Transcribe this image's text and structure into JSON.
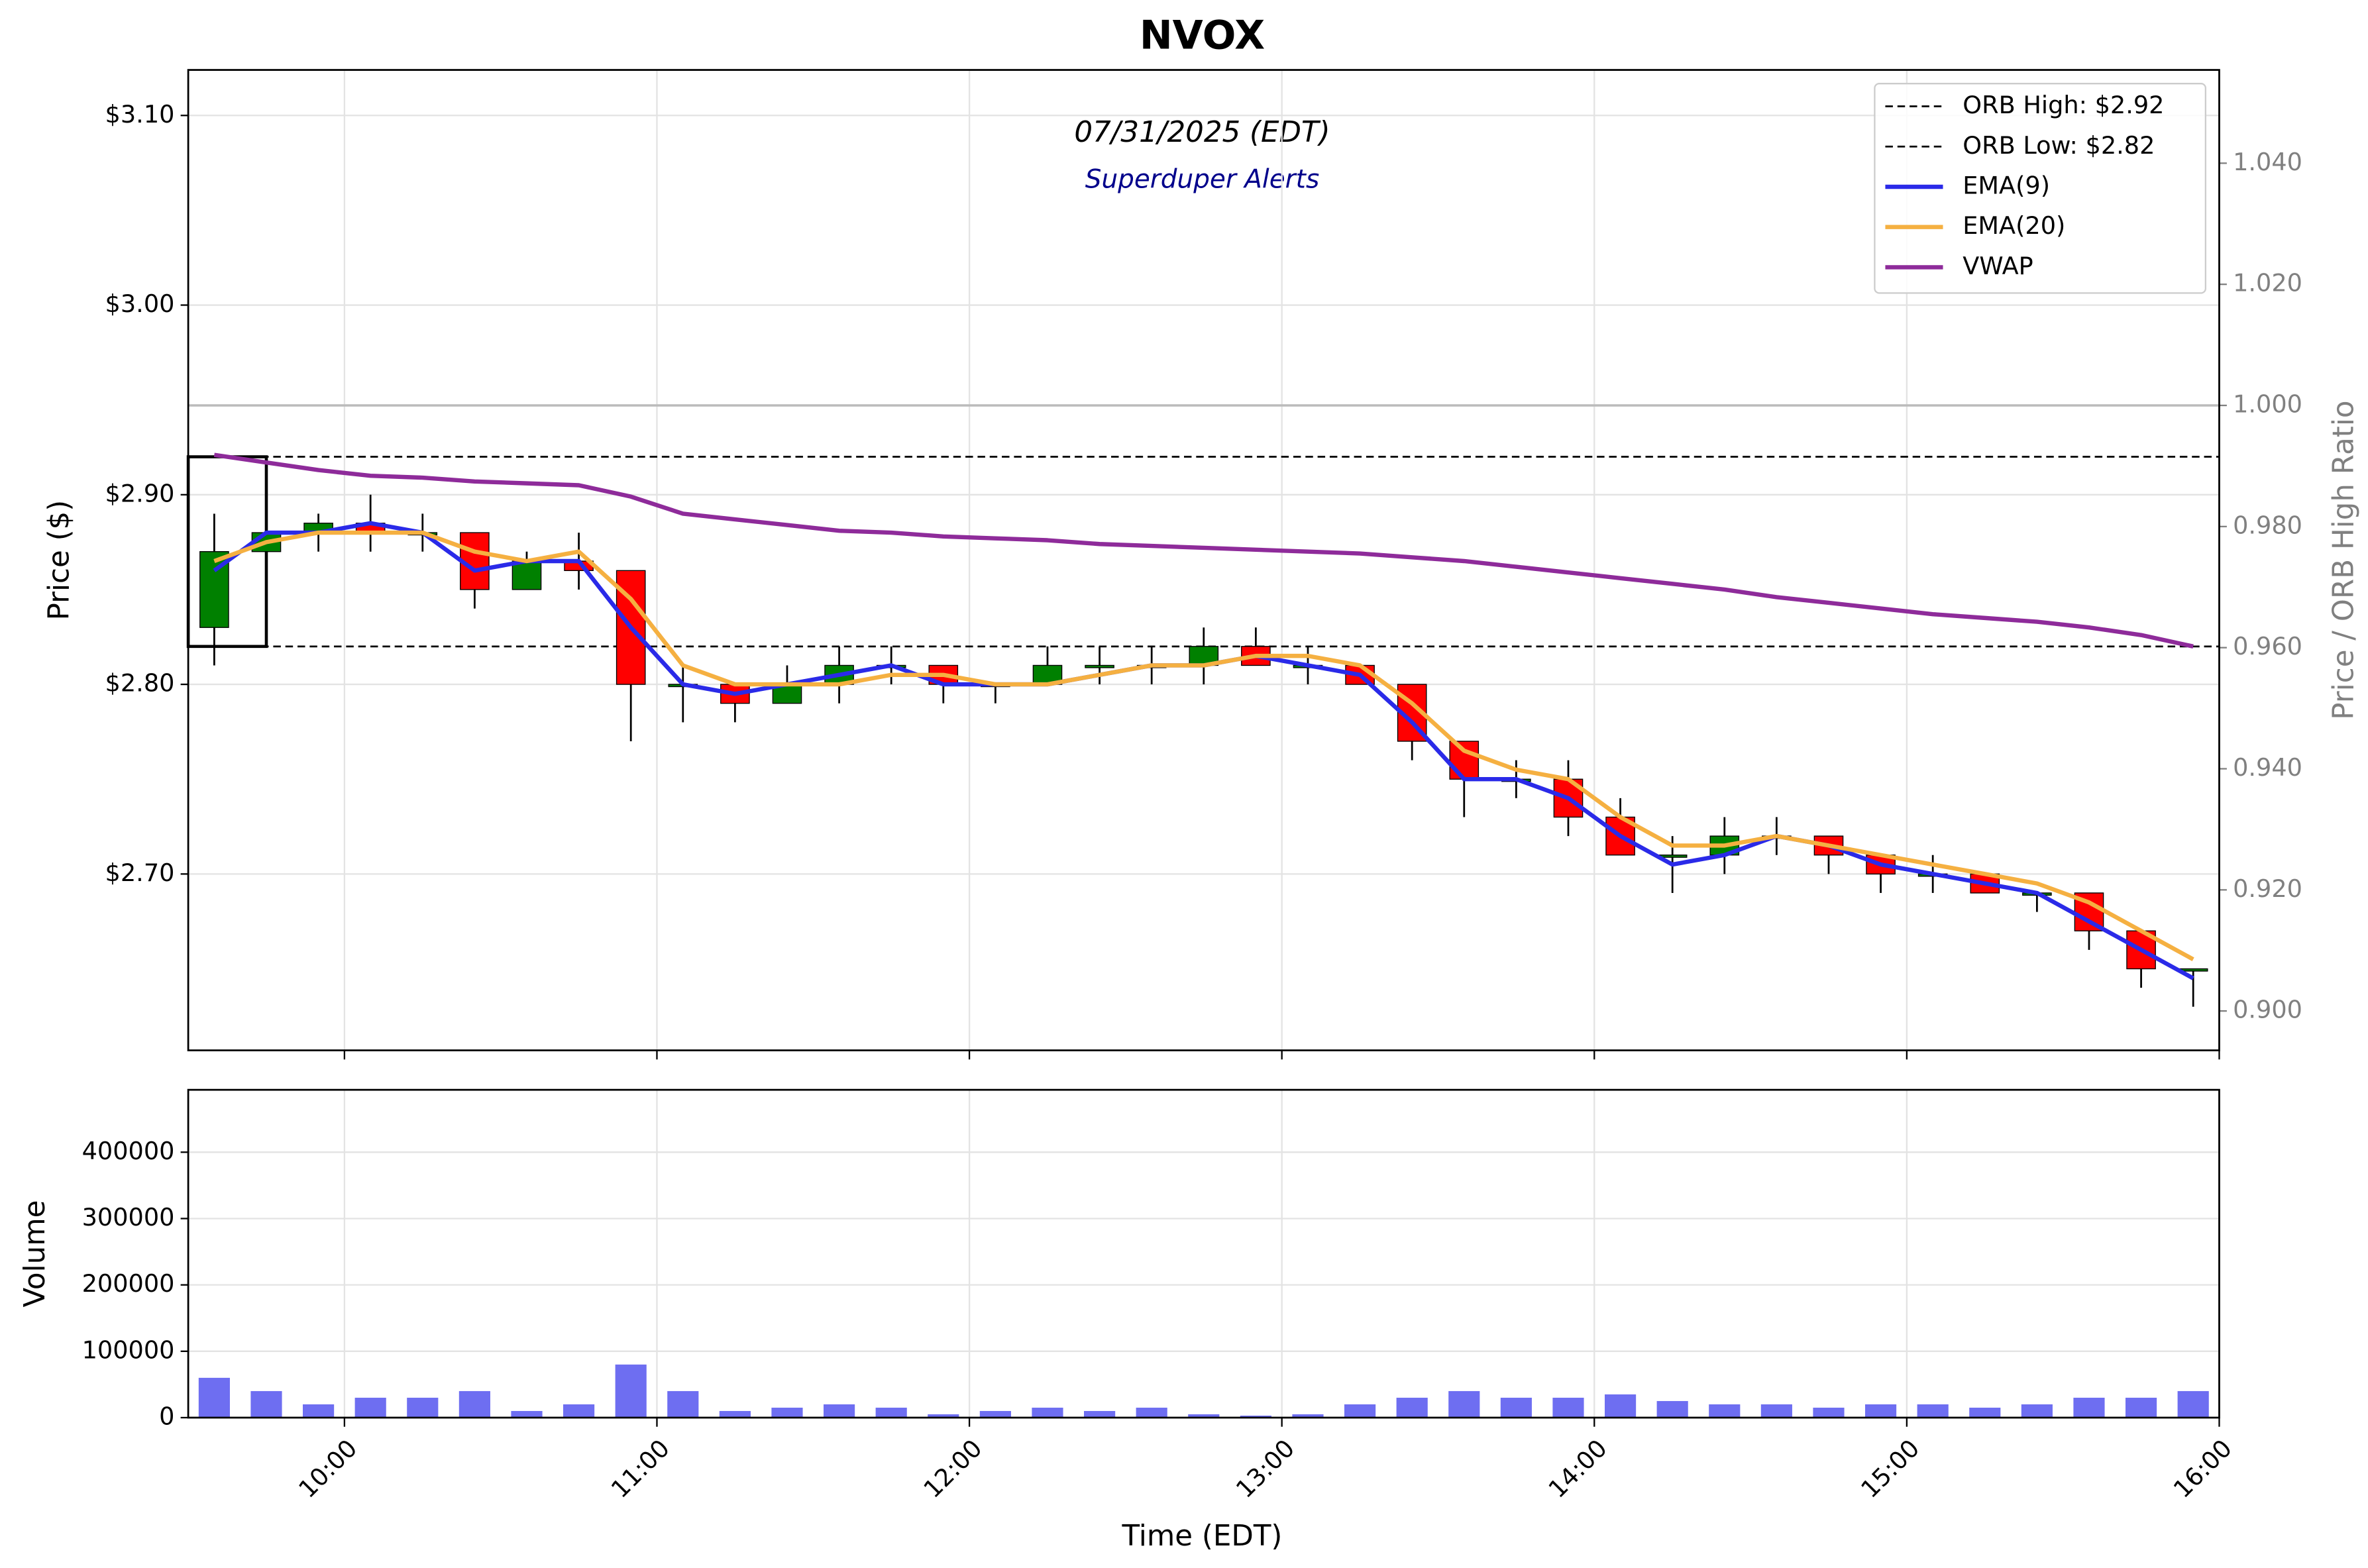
{
  "chart_data": [
    {
      "type": "candlestick",
      "title": "NVOX",
      "subtitle": "07/31/2025 (EDT)",
      "annotation": "Superduper Alerts",
      "ylabel": "Price ($)",
      "y2label": "Price / ORB High Ratio",
      "x": [
        575,
        585,
        595,
        605,
        615,
        625,
        635,
        645,
        655,
        665,
        675,
        685,
        695,
        705,
        715,
        725,
        735,
        745,
        755,
        765,
        775,
        785,
        795,
        805,
        815,
        825,
        835,
        845,
        855,
        865,
        875,
        885,
        895,
        905,
        915,
        925,
        935,
        945,
        955
      ],
      "open": [
        2.83,
        2.87,
        2.88,
        2.885,
        2.88,
        2.88,
        2.85,
        2.865,
        2.86,
        2.8,
        2.8,
        2.79,
        2.8,
        2.81,
        2.81,
        2.8,
        2.8,
        2.81,
        2.81,
        2.81,
        2.82,
        2.81,
        2.81,
        2.8,
        2.77,
        2.75,
        2.75,
        2.73,
        2.71,
        2.71,
        2.72,
        2.72,
        2.71,
        2.7,
        2.7,
        2.69,
        2.69,
        2.67,
        2.65
      ],
      "high": [
        2.89,
        2.92,
        2.89,
        2.9,
        2.89,
        2.88,
        2.87,
        2.88,
        2.86,
        2.81,
        2.8,
        2.81,
        2.82,
        2.82,
        2.81,
        2.8,
        2.82,
        2.82,
        2.82,
        2.83,
        2.83,
        2.82,
        2.81,
        2.8,
        2.77,
        2.76,
        2.76,
        2.74,
        2.72,
        2.73,
        2.73,
        2.72,
        2.71,
        2.71,
        2.7,
        2.69,
        2.69,
        2.67,
        2.65
      ],
      "low": [
        2.81,
        2.86,
        2.87,
        2.87,
        2.87,
        2.84,
        2.85,
        2.85,
        2.77,
        2.78,
        2.78,
        2.79,
        2.79,
        2.8,
        2.79,
        2.79,
        2.8,
        2.8,
        2.8,
        2.8,
        2.81,
        2.8,
        2.8,
        2.76,
        2.73,
        2.74,
        2.72,
        2.71,
        2.69,
        2.7,
        2.71,
        2.7,
        2.69,
        2.69,
        2.69,
        2.68,
        2.66,
        2.64,
        2.63
      ],
      "close": [
        2.87,
        2.88,
        2.885,
        2.88,
        2.88,
        2.85,
        2.865,
        2.86,
        2.8,
        2.8,
        2.79,
        2.8,
        2.81,
        2.81,
        2.8,
        2.8,
        2.81,
        2.81,
        2.81,
        2.82,
        2.81,
        2.81,
        2.8,
        2.77,
        2.75,
        2.75,
        2.73,
        2.71,
        2.71,
        2.72,
        2.72,
        2.71,
        2.7,
        2.7,
        2.69,
        2.69,
        2.67,
        2.65,
        2.65
      ],
      "up_color": "#008000",
      "down_color": "#ff0000",
      "series": [
        {
          "name": "EMA(9)",
          "color": "#2a2ae8",
          "values": [
            2.86,
            2.88,
            2.88,
            2.885,
            2.88,
            2.86,
            2.865,
            2.865,
            2.83,
            2.8,
            2.795,
            2.8,
            2.805,
            2.81,
            2.8,
            2.8,
            2.8,
            2.805,
            2.81,
            2.81,
            2.815,
            2.81,
            2.805,
            2.78,
            2.75,
            2.75,
            2.74,
            2.72,
            2.705,
            2.71,
            2.72,
            2.715,
            2.705,
            2.7,
            2.695,
            2.69,
            2.675,
            2.66,
            2.645
          ]
        },
        {
          "name": "EMA(20)",
          "color": "#f5b041",
          "values": [
            2.865,
            2.875,
            2.88,
            2.88,
            2.88,
            2.87,
            2.865,
            2.87,
            2.845,
            2.81,
            2.8,
            2.8,
            2.8,
            2.805,
            2.805,
            2.8,
            2.8,
            2.805,
            2.81,
            2.81,
            2.815,
            2.815,
            2.81,
            2.79,
            2.765,
            2.755,
            2.75,
            2.73,
            2.715,
            2.715,
            2.72,
            2.715,
            2.71,
            2.705,
            2.7,
            2.695,
            2.685,
            2.67,
            2.655
          ]
        },
        {
          "name": "VWAP",
          "color": "#8e2b9a",
          "values": [
            2.921,
            2.917,
            2.913,
            2.91,
            2.909,
            2.907,
            2.906,
            2.905,
            2.899,
            2.89,
            2.887,
            2.884,
            2.881,
            2.88,
            2.878,
            2.877,
            2.876,
            2.874,
            2.873,
            2.872,
            2.871,
            2.87,
            2.869,
            2.867,
            2.865,
            2.862,
            2.859,
            2.856,
            2.853,
            2.85,
            2.846,
            2.843,
            2.84,
            2.837,
            2.835,
            2.833,
            2.83,
            2.826,
            2.82
          ]
        }
      ],
      "hlines": [
        {
          "name": "ORB High: $2.92",
          "value": 2.92,
          "color": "#000000",
          "dash": true
        },
        {
          "name": "ORB Low: $2.82",
          "value": 2.82,
          "color": "#000000",
          "dash": true
        }
      ],
      "y2lines": [
        {
          "value": 1.0,
          "color": "#bbbbbb"
        }
      ],
      "orb_box": {
        "xlim": [
          570,
          585
        ],
        "ylim": [
          2.82,
          2.92
        ]
      },
      "xlim": [
        570,
        960
      ],
      "ylim": [
        2.607,
        3.124
      ],
      "yticks": [
        {
          "value": 2.7,
          "label": "$2.70"
        },
        {
          "value": 2.8,
          "label": "$2.80"
        },
        {
          "value": 2.9,
          "label": "$2.90"
        },
        {
          "value": 3.0,
          "label": "$3.00"
        },
        {
          "value": 3.1,
          "label": "$3.10"
        }
      ],
      "y2lim": [
        0.8935,
        1.0554
      ],
      "y2ticks": [
        {
          "value": 0.9,
          "label": "0.900"
        },
        {
          "value": 0.92,
          "label": "0.920"
        },
        {
          "value": 0.94,
          "label": "0.940"
        },
        {
          "value": 0.96,
          "label": "0.960"
        },
        {
          "value": 0.98,
          "label": "0.980"
        },
        {
          "value": 1.0,
          "label": "1.000"
        },
        {
          "value": 1.02,
          "label": "1.020"
        },
        {
          "value": 1.04,
          "label": "1.040"
        }
      ],
      "grid": true,
      "legend": "upper right"
    },
    {
      "type": "bar",
      "xlabel": "Time (EDT)",
      "ylabel": "Volume",
      "x": [
        575,
        585,
        595,
        605,
        615,
        625,
        635,
        645,
        655,
        665,
        675,
        685,
        695,
        705,
        715,
        725,
        735,
        745,
        755,
        765,
        775,
        785,
        795,
        805,
        815,
        825,
        835,
        845,
        855,
        865,
        875,
        885,
        895,
        905,
        915,
        925,
        935,
        945,
        955
      ],
      "values": [
        60000,
        40000,
        20000,
        30000,
        30000,
        40000,
        10000,
        20000,
        80000,
        40000,
        10000,
        15000,
        20000,
        15000,
        5000,
        10000,
        15000,
        10000,
        15000,
        5000,
        3000,
        5000,
        20000,
        30000,
        40000,
        30000,
        30000,
        35000,
        25000,
        20000,
        20000,
        15000,
        20000,
        20000,
        15000,
        20000,
        30000,
        30000,
        40000
      ],
      "color": "#5555ee",
      "xlim": [
        570,
        960
      ],
      "xticks": [
        {
          "value": 600,
          "label": "10:00"
        },
        {
          "value": 660,
          "label": "11:00"
        },
        {
          "value": 720,
          "label": "12:00"
        },
        {
          "value": 780,
          "label": "13:00"
        },
        {
          "value": 840,
          "label": "14:00"
        },
        {
          "value": 900,
          "label": "15:00"
        },
        {
          "value": 960,
          "label": "16:00"
        }
      ],
      "ylim": [
        0,
        494000
      ],
      "yticks": [
        0,
        100000,
        200000,
        300000,
        400000
      ],
      "grid": true
    }
  ]
}
